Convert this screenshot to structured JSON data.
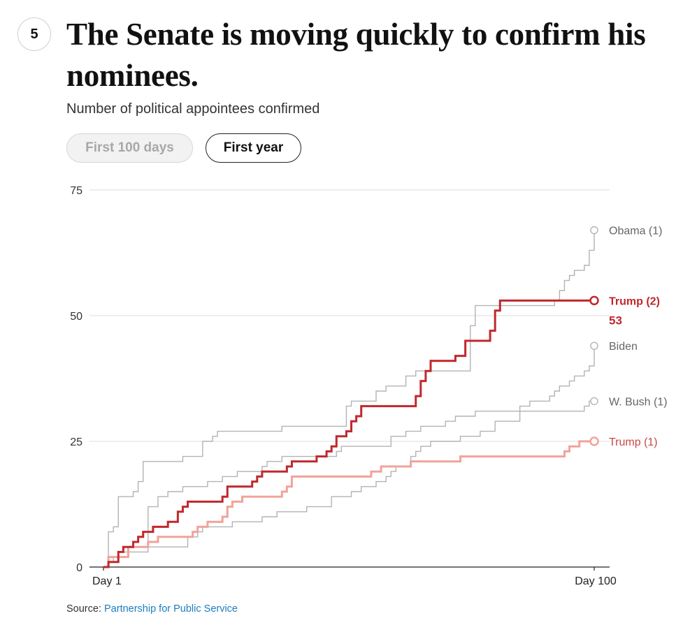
{
  "step_number": "5",
  "title": "The Senate is moving quickly to confirm his nominees.",
  "subtitle": "Number of political appointees confirmed",
  "toggles": [
    {
      "label": "First 100 days",
      "active": false
    },
    {
      "label": "First year",
      "active": true
    }
  ],
  "source": {
    "prefix": "Source: ",
    "link_text": "Partnership for Public Service"
  },
  "chart_data": {
    "type": "line",
    "step": true,
    "xlim": [
      1,
      100
    ],
    "ylim": [
      0,
      75
    ],
    "x_tick_labels": [
      {
        "x": 1,
        "label": "Day 1"
      },
      {
        "x": 100,
        "label": "Day 100"
      }
    ],
    "y_ticks": [
      0,
      25,
      50,
      75
    ],
    "grid": true,
    "highlight_value": "53",
    "series": [
      {
        "name": "Obama (1)",
        "color": "#b3b3b3",
        "label_color": "#666666",
        "emphasis": false,
        "points": [
          [
            1,
            0
          ],
          [
            2,
            7
          ],
          [
            3,
            8
          ],
          [
            4,
            14
          ],
          [
            7,
            15
          ],
          [
            8,
            17
          ],
          [
            9,
            21
          ],
          [
            17,
            22
          ],
          [
            21,
            25
          ],
          [
            23,
            26
          ],
          [
            24,
            27
          ],
          [
            37,
            28
          ],
          [
            50,
            30
          ],
          [
            50,
            32
          ],
          [
            51,
            33
          ],
          [
            56,
            35
          ],
          [
            58,
            36
          ],
          [
            62,
            38
          ],
          [
            64,
            39
          ],
          [
            75,
            48
          ],
          [
            76,
            52
          ],
          [
            92,
            53
          ],
          [
            93,
            55
          ],
          [
            94,
            57
          ],
          [
            95,
            58
          ],
          [
            96,
            59
          ],
          [
            98,
            60
          ],
          [
            99,
            63
          ],
          [
            100,
            67
          ]
        ]
      },
      {
        "name": "Trump (2)",
        "color": "#c0282d",
        "label_color": "#c0282d",
        "emphasis": true,
        "points": [
          [
            1,
            0
          ],
          [
            2,
            1
          ],
          [
            4,
            3
          ],
          [
            5,
            4
          ],
          [
            7,
            5
          ],
          [
            8,
            6
          ],
          [
            9,
            7
          ],
          [
            11,
            8
          ],
          [
            14,
            9
          ],
          [
            16,
            11
          ],
          [
            17,
            12
          ],
          [
            18,
            13
          ],
          [
            25,
            14
          ],
          [
            26,
            16
          ],
          [
            31,
            17
          ],
          [
            32,
            18
          ],
          [
            33,
            19
          ],
          [
            38,
            20
          ],
          [
            39,
            21
          ],
          [
            44,
            22
          ],
          [
            46,
            23
          ],
          [
            47,
            24
          ],
          [
            48,
            26
          ],
          [
            50,
            27
          ],
          [
            51,
            29
          ],
          [
            52,
            30
          ],
          [
            53,
            32
          ],
          [
            64,
            34
          ],
          [
            65,
            37
          ],
          [
            66,
            39
          ],
          [
            67,
            41
          ],
          [
            72,
            42
          ],
          [
            74,
            45
          ],
          [
            79,
            47
          ],
          [
            80,
            51
          ],
          [
            81,
            53
          ],
          [
            100,
            53
          ]
        ]
      },
      {
        "name": "Biden",
        "color": "#b3b3b3",
        "label_color": "#666666",
        "emphasis": false,
        "points": [
          [
            1,
            0
          ],
          [
            2,
            1
          ],
          [
            4,
            2
          ],
          [
            6,
            3
          ],
          [
            10,
            4
          ],
          [
            18,
            6
          ],
          [
            20,
            7
          ],
          [
            21,
            8
          ],
          [
            27,
            9
          ],
          [
            33,
            10
          ],
          [
            36,
            11
          ],
          [
            42,
            12
          ],
          [
            47,
            14
          ],
          [
            51,
            15
          ],
          [
            53,
            16
          ],
          [
            56,
            17
          ],
          [
            58,
            18
          ],
          [
            59,
            19
          ],
          [
            60,
            20
          ],
          [
            63,
            22
          ],
          [
            64,
            23
          ],
          [
            65,
            24
          ],
          [
            67,
            25
          ],
          [
            73,
            26
          ],
          [
            77,
            27
          ],
          [
            80,
            29
          ],
          [
            85,
            32
          ],
          [
            87,
            33
          ],
          [
            91,
            34
          ],
          [
            92,
            35
          ],
          [
            93,
            36
          ],
          [
            95,
            37
          ],
          [
            96,
            38
          ],
          [
            98,
            39
          ],
          [
            99,
            40
          ],
          [
            100,
            44
          ]
        ]
      },
      {
        "name": "W. Bush (1)",
        "color": "#b3b3b3",
        "label_color": "#666666",
        "emphasis": false,
        "points": [
          [
            1,
            0
          ],
          [
            2,
            1
          ],
          [
            3,
            2
          ],
          [
            4,
            3
          ],
          [
            6,
            4
          ],
          [
            10,
            12
          ],
          [
            12,
            14
          ],
          [
            14,
            15
          ],
          [
            17,
            16
          ],
          [
            22,
            17
          ],
          [
            25,
            18
          ],
          [
            28,
            19
          ],
          [
            33,
            20
          ],
          [
            34,
            21
          ],
          [
            37,
            22
          ],
          [
            48,
            23
          ],
          [
            49,
            24
          ],
          [
            59,
            26
          ],
          [
            62,
            27
          ],
          [
            65,
            28
          ],
          [
            70,
            29
          ],
          [
            72,
            30
          ],
          [
            76,
            31
          ],
          [
            98,
            32
          ],
          [
            99,
            33
          ],
          [
            100,
            33
          ]
        ]
      },
      {
        "name": "Trump (1)",
        "color": "#f1a39a",
        "label_color": "#c64a44",
        "emphasis": false,
        "points": [
          [
            1,
            0
          ],
          [
            2,
            2
          ],
          [
            6,
            4
          ],
          [
            10,
            5
          ],
          [
            12,
            6
          ],
          [
            19,
            7
          ],
          [
            20,
            8
          ],
          [
            22,
            9
          ],
          [
            25,
            10
          ],
          [
            26,
            12
          ],
          [
            27,
            13
          ],
          [
            29,
            14
          ],
          [
            37,
            15
          ],
          [
            38,
            16
          ],
          [
            39,
            18
          ],
          [
            55,
            19
          ],
          [
            57,
            20
          ],
          [
            63,
            21
          ],
          [
            73,
            22
          ],
          [
            94,
            23
          ],
          [
            95,
            24
          ],
          [
            97,
            25
          ],
          [
            100,
            25
          ]
        ]
      }
    ]
  }
}
